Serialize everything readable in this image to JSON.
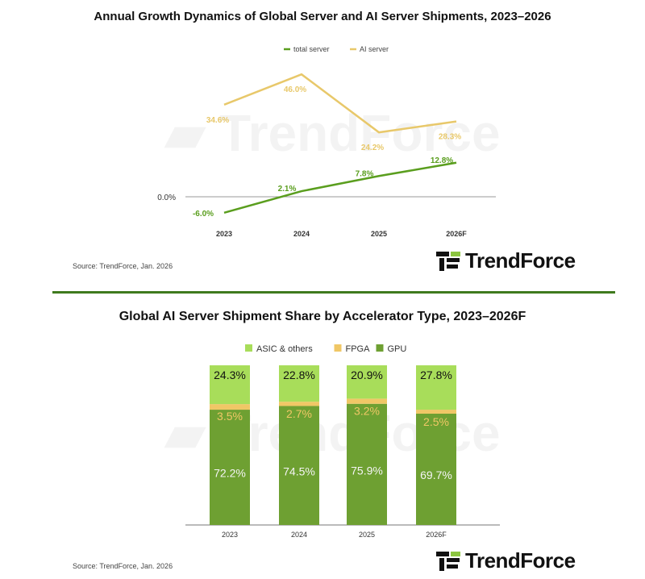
{
  "colors": {
    "total_server": "#5a9e1e",
    "ai_server": "#e8c86a",
    "asic": "#a8dd5a",
    "fpga": "#f0c766",
    "gpu": "#6ea032",
    "divider": "#3f7a1e"
  },
  "brand": {
    "logo_text": "TrendForce",
    "watermark": "TrendForce"
  },
  "chart_data": [
    {
      "type": "line",
      "title": "Annual Growth Dynamics of Global Server and AI Server Shipments, 2023–2026",
      "categories": [
        "2023",
        "2024",
        "2025",
        "2026F"
      ],
      "y_tick_labels": [
        "0.0%"
      ],
      "legend_placement": "top",
      "series": [
        {
          "name": "total server",
          "values": [
            -6.0,
            2.1,
            7.8,
            12.8
          ],
          "labels": [
            "-6.0%",
            "2.1%",
            "7.8%",
            "12.8%"
          ]
        },
        {
          "name": "AI server",
          "values": [
            34.6,
            46.0,
            24.2,
            28.3
          ],
          "labels": [
            "34.6%",
            "46.0%",
            "24.2%",
            "28.3%"
          ]
        }
      ],
      "source": "Source: TrendForce, Jan. 2026"
    },
    {
      "type": "bar",
      "stacked": true,
      "title": "Global AI Server Shipment Share by Accelerator Type, 2023–2026F",
      "categories": [
        "2023",
        "2024",
        "2025",
        "2026F"
      ],
      "legend_placement": "top",
      "series": [
        {
          "name": "GPU",
          "values": [
            72.2,
            74.5,
            75.9,
            69.7
          ],
          "labels": [
            "72.2%",
            "74.5%",
            "75.9%",
            "69.7%"
          ]
        },
        {
          "name": "FPGA",
          "values": [
            3.5,
            2.7,
            3.2,
            2.5
          ],
          "labels": [
            "3.5%",
            "2.7%",
            "3.2%",
            "2.5%"
          ]
        },
        {
          "name": "ASIC & others",
          "values": [
            24.3,
            22.8,
            20.9,
            27.8
          ],
          "labels": [
            "24.3%",
            "22.8%",
            "20.9%",
            "27.8%"
          ]
        }
      ],
      "legend_order": [
        "ASIC & others",
        "FPGA",
        "GPU"
      ],
      "source": "Source: TrendForce, Jan. 2026"
    }
  ]
}
